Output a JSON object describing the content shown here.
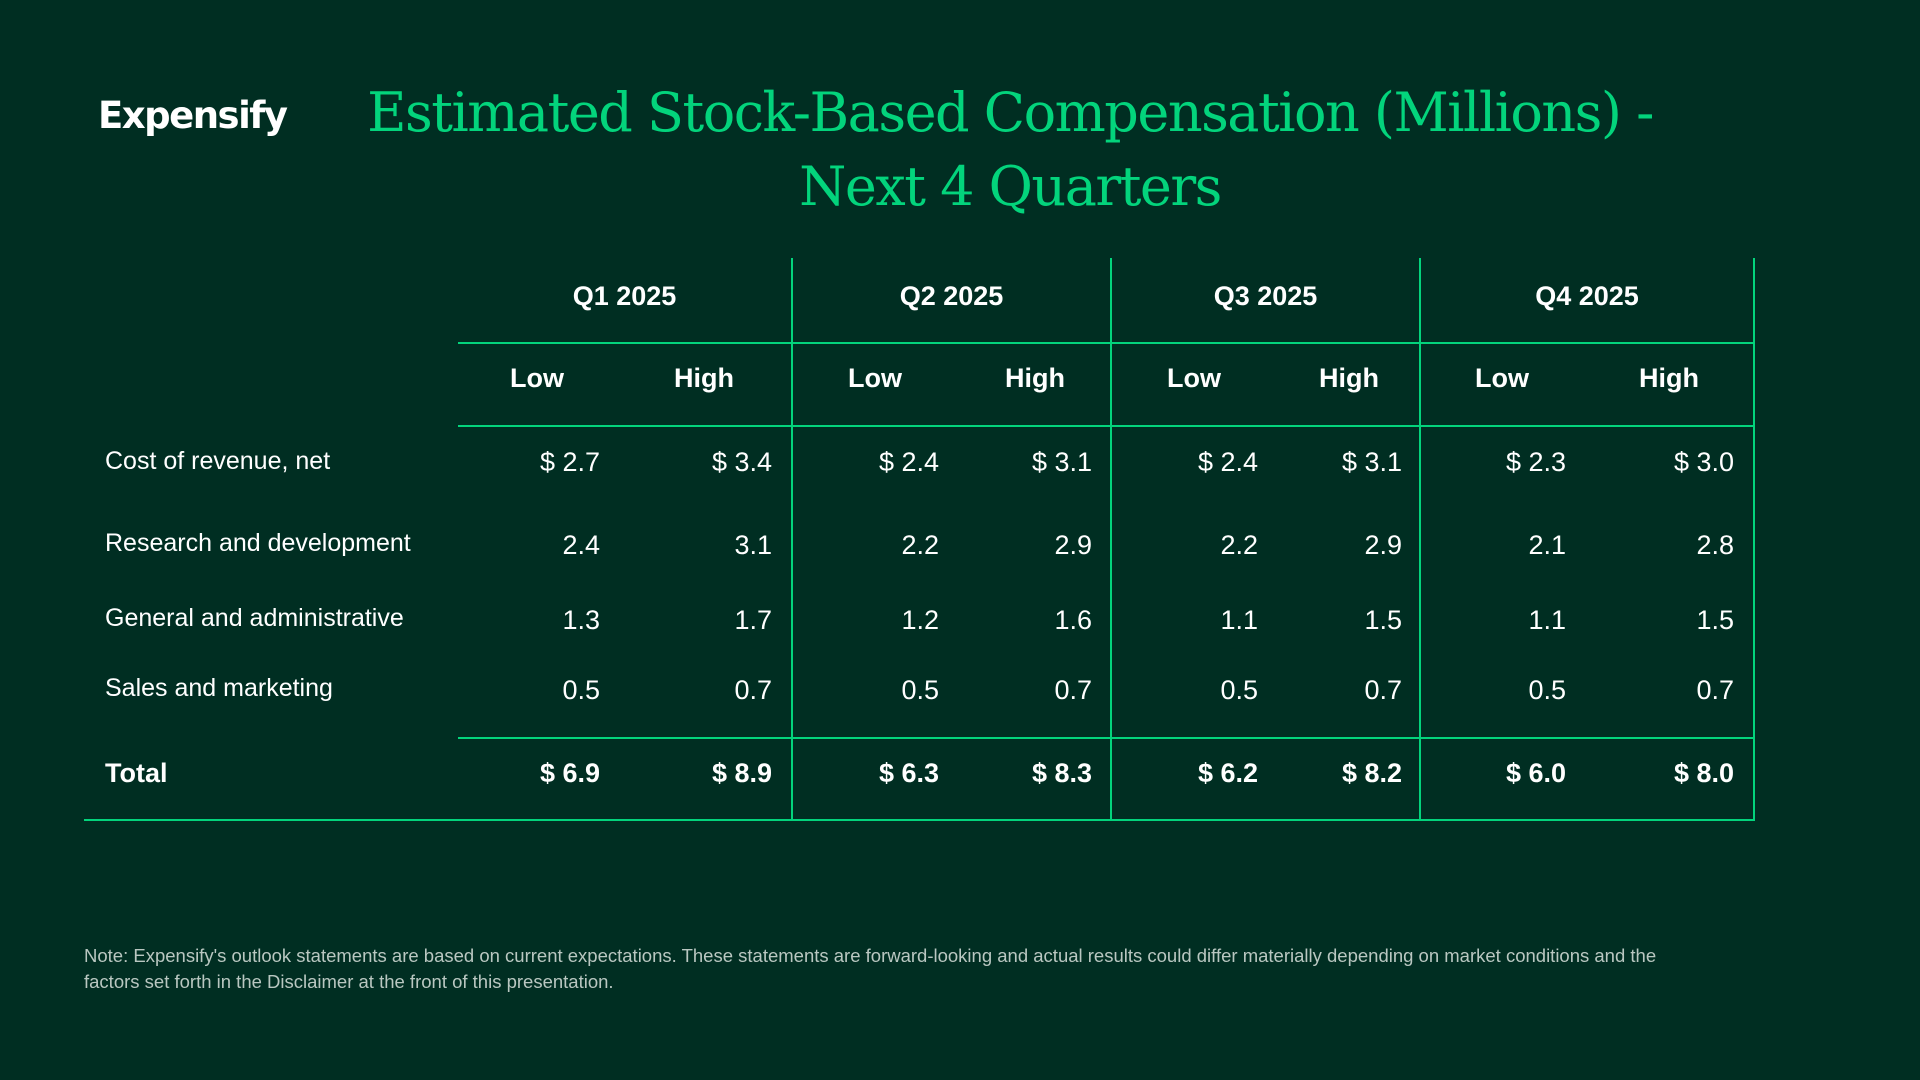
{
  "brand": {
    "logo_text": "Expensify"
  },
  "title": {
    "line1": "Estimated Stock-Based Compensation (Millions) -",
    "line2": "Next 4 Quarters"
  },
  "table": {
    "quarters": [
      "Q1 2025",
      "Q2 2025",
      "Q3 2025",
      "Q4 2025"
    ],
    "subheaders": [
      "Low",
      "High"
    ],
    "rows": [
      {
        "label": "Cost of revenue, net",
        "values": [
          "$ 2.7",
          "$ 3.4",
          "$ 2.4",
          "$ 3.1",
          "$ 2.4",
          "$ 3.1",
          "$ 2.3",
          "$ 3.0"
        ]
      },
      {
        "label": "Research and development",
        "values": [
          "2.4",
          "3.1",
          "2.2",
          "2.9",
          "2.2",
          "2.9",
          "2.1",
          "2.8"
        ]
      },
      {
        "label": "General and administrative",
        "values": [
          "1.3",
          "1.7",
          "1.2",
          "1.6",
          "1.1",
          "1.5",
          "1.1",
          "1.5"
        ]
      },
      {
        "label": "Sales and marketing",
        "values": [
          "0.5",
          "0.7",
          "0.5",
          "0.7",
          "0.5",
          "0.7",
          "0.5",
          "0.7"
        ]
      }
    ],
    "total": {
      "label": "Total",
      "values": [
        "$ 6.9",
        "$ 8.9",
        "$ 6.3",
        "$ 8.3",
        "$ 6.2",
        "$ 8.2",
        "$ 6.0",
        "$ 8.0"
      ]
    }
  },
  "note": "Note: Expensify's outlook statements are based on current expectations. These statements are forward-looking and actual results could differ materially depending on market conditions and the factors set forth in the Disclaimer at the front of this presentation.",
  "colors": {
    "background": "#002e22",
    "accent": "#03d47c",
    "text": "#ffffff",
    "note_text": "#b9c7c1"
  }
}
